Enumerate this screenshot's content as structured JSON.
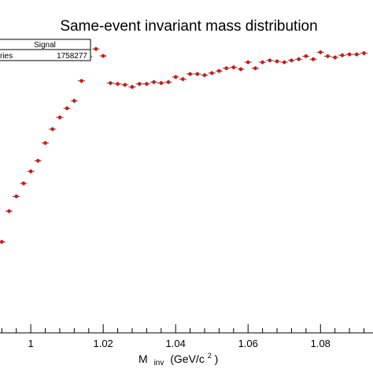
{
  "chart_data": {
    "type": "scatter",
    "title": "Same-event invariant mass distribution",
    "xlabel_main": "M",
    "xlabel_sub": "inv",
    "xlabel_unit": "(GeV/c",
    "xlabel_sup": "2",
    "xlabel_close": ")",
    "xlim": [
      0.9915,
      1.0945
    ],
    "ylim": [
      0,
      100
    ],
    "bin_width": 0.002,
    "x_ticks": [
      1.0,
      1.02,
      1.04,
      1.06,
      1.08
    ],
    "x_tick_labels": [
      "1",
      "1.02",
      "1.04",
      "1.06",
      "1.08"
    ],
    "stats_box": {
      "name": "Signal",
      "label": "ries",
      "value": "1758277"
    },
    "marker_color": "#e01010",
    "error_color": "#444444",
    "series": [
      {
        "x": [
          0.992,
          0.994,
          0.996,
          0.998,
          1.0,
          1.002,
          1.004,
          1.006,
          1.008,
          1.01,
          1.012,
          1.014,
          1.016,
          1.018,
          1.02,
          1.022,
          1.024,
          1.026,
          1.028,
          1.03,
          1.032,
          1.034,
          1.036,
          1.038,
          1.04,
          1.042,
          1.044,
          1.046,
          1.048,
          1.05,
          1.052,
          1.054,
          1.056,
          1.058,
          1.06,
          1.062,
          1.064,
          1.066,
          1.068,
          1.07,
          1.072,
          1.074,
          1.076,
          1.078,
          1.08,
          1.082,
          1.084,
          1.086,
          1.088,
          1.09,
          1.092
        ],
        "y": [
          30.2,
          40.4,
          45.3,
          49.6,
          53.6,
          57.1,
          63.0,
          67.6,
          71.5,
          74.5,
          77.0,
          83.6,
          91.6,
          94.2,
          91.9,
          82.9,
          82.6,
          82.3,
          81.6,
          82.6,
          82.6,
          83.2,
          82.9,
          83.2,
          84.9,
          84.2,
          85.9,
          85.9,
          85.5,
          86.2,
          86.9,
          87.8,
          88.1,
          87.5,
          89.8,
          87.8,
          89.8,
          90.4,
          90.1,
          89.8,
          90.4,
          90.8,
          91.8,
          90.8,
          93.1,
          91.8,
          91.4,
          92.1,
          92.4,
          92.4,
          92.8
        ]
      }
    ]
  }
}
